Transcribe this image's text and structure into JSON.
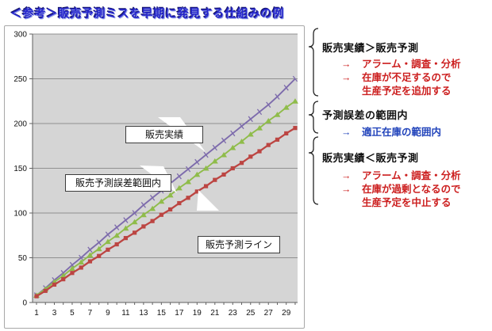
{
  "title": "＜参考＞販売予測ミスを早期に発見する仕組みの例",
  "colors": {
    "title_blue": "#2727cc",
    "plot_bg": "#d5d5d5",
    "gridline": "#909090",
    "axis": "#606060",
    "annotation_red": "#cc1f1f",
    "annotation_blue": "#2244bb",
    "series_actual": "#7d6bac",
    "series_error_band": "#8fbc4a",
    "series_forecast": "#bc4542"
  },
  "chart_data": {
    "type": "line",
    "title": "",
    "xlabel": "",
    "ylabel": "",
    "x": [
      1,
      2,
      3,
      4,
      5,
      6,
      7,
      8,
      9,
      10,
      11,
      12,
      13,
      14,
      15,
      16,
      17,
      18,
      19,
      20,
      21,
      22,
      23,
      24,
      25,
      26,
      27,
      28,
      29,
      30
    ],
    "x_tick_labels": [
      "1",
      "3",
      "5",
      "7",
      "9",
      "11",
      "13",
      "15",
      "17",
      "19",
      "21",
      "23",
      "25",
      "27",
      "29"
    ],
    "y_ticks": [
      "0",
      "50",
      "100",
      "150",
      "200",
      "250",
      "300"
    ],
    "ylim": [
      0,
      300
    ],
    "grid": "horizontal",
    "legend": "none (inline callouts)",
    "series": [
      {
        "name": "販売実績",
        "color": "#7d6bac",
        "marker": "cross",
        "values": [
          8,
          16,
          25,
          33,
          42,
          50,
          59,
          67,
          76,
          84,
          92,
          100,
          109,
          117,
          125,
          133,
          141,
          149,
          157,
          165,
          173,
          181,
          189,
          197,
          205,
          213,
          221,
          230,
          240,
          250
        ]
      },
      {
        "name": "販売予測誤差範囲内",
        "color": "#8fbc4a",
        "marker": "triangle",
        "values": [
          8,
          15,
          23,
          30,
          38,
          45,
          53,
          60,
          68,
          75,
          83,
          90,
          98,
          105,
          113,
          120,
          128,
          135,
          143,
          150,
          158,
          165,
          173,
          180,
          188,
          195,
          203,
          210,
          218,
          225
        ]
      },
      {
        "name": "販売予測ライン",
        "color": "#bc4542",
        "marker": "square",
        "values": [
          7,
          13,
          20,
          26,
          33,
          39,
          46,
          52,
          59,
          65,
          72,
          78,
          85,
          91,
          98,
          104,
          111,
          117,
          124,
          130,
          137,
          143,
          150,
          156,
          163,
          169,
          176,
          182,
          189,
          195
        ]
      }
    ],
    "callouts": [
      {
        "label": "販売実績"
      },
      {
        "label": "販売予測誤差範囲内"
      },
      {
        "label": "販売予測ライン"
      }
    ]
  },
  "annotations": [
    {
      "header": "販売実績＞販売予測",
      "items": [
        {
          "arrow": "→",
          "text": "アラーム・調査・分析",
          "color": "red"
        },
        {
          "arrow": "→",
          "text": "在庫が不足するので",
          "color": "red"
        },
        {
          "arrow": "",
          "text": "生産予定を追加する",
          "color": "red"
        }
      ]
    },
    {
      "header": "予測誤差の範囲内",
      "items": [
        {
          "arrow": "→",
          "text": "適正在庫の範囲内",
          "color": "blue"
        }
      ]
    },
    {
      "header": "販売実績＜販売予測",
      "items": [
        {
          "arrow": "→",
          "text": "アラーム・調査・分析",
          "color": "red"
        },
        {
          "arrow": "→",
          "text": "在庫が過剰となるので",
          "color": "red"
        },
        {
          "arrow": "",
          "text": "生産予定を中止する",
          "color": "red"
        }
      ]
    }
  ]
}
